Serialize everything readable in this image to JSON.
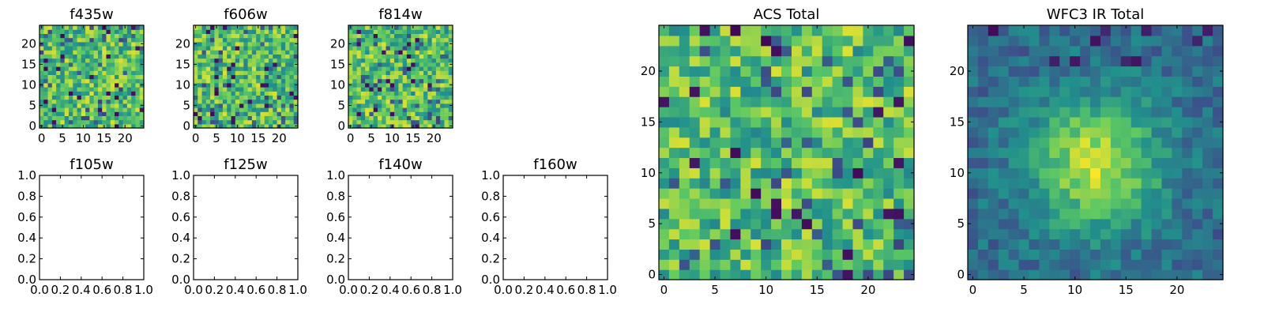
{
  "colormap": [
    "#440154",
    "#3b528b",
    "#21918c",
    "#5ec962",
    "#fde725"
  ],
  "chart_data": [
    {
      "type": "heatmap",
      "title": "f435w",
      "xticks": [
        "0",
        "5",
        "10",
        "15",
        "20"
      ],
      "yticks": [
        "0",
        "5",
        "10",
        "15",
        "20"
      ],
      "grid": false,
      "legend": "none",
      "extent": [
        -0.5,
        24.5,
        -0.5,
        24.5
      ],
      "seed": 11,
      "mode": "noise"
    },
    {
      "type": "heatmap",
      "title": "f606w",
      "xticks": [
        "0",
        "5",
        "10",
        "15",
        "20"
      ],
      "yticks": [
        "0",
        "5",
        "10",
        "15",
        "20"
      ],
      "grid": false,
      "legend": "none",
      "extent": [
        -0.5,
        24.5,
        -0.5,
        24.5
      ],
      "seed": 23,
      "mode": "noise"
    },
    {
      "type": "heatmap",
      "title": "f814w",
      "xticks": [
        "0",
        "5",
        "10",
        "15",
        "20"
      ],
      "yticks": [
        "0",
        "5",
        "10",
        "15",
        "20"
      ],
      "grid": false,
      "legend": "none",
      "extent": [
        -0.5,
        24.5,
        -0.5,
        24.5
      ],
      "seed": 37,
      "mode": "noise"
    },
    {
      "type": "empty",
      "title": "f105w",
      "xticks": [
        "0.0",
        "0.2",
        "0.4",
        "0.6",
        "0.8",
        "1.0"
      ],
      "yticks": [
        "0.0",
        "0.2",
        "0.4",
        "0.6",
        "0.8",
        "1.0"
      ],
      "xlim": [
        0,
        1
      ],
      "ylim": [
        0,
        1
      ]
    },
    {
      "type": "empty",
      "title": "f125w",
      "xticks": [
        "0.0",
        "0.2",
        "0.4",
        "0.6",
        "0.8",
        "1.0"
      ],
      "yticks": [
        "0.0",
        "0.2",
        "0.4",
        "0.6",
        "0.8",
        "1.0"
      ],
      "xlim": [
        0,
        1
      ],
      "ylim": [
        0,
        1
      ]
    },
    {
      "type": "empty",
      "title": "f140w",
      "xticks": [
        "0.0",
        "0.2",
        "0.4",
        "0.6",
        "0.8",
        "1.0"
      ],
      "yticks": [
        "0.0",
        "0.2",
        "0.4",
        "0.6",
        "0.8",
        "1.0"
      ],
      "xlim": [
        0,
        1
      ],
      "ylim": [
        0,
        1
      ]
    },
    {
      "type": "empty",
      "title": "f160w",
      "xticks": [
        "0.0",
        "0.2",
        "0.4",
        "0.6",
        "0.8",
        "1.0"
      ],
      "yticks": [
        "0.0",
        "0.2",
        "0.4",
        "0.6",
        "0.8",
        "1.0"
      ],
      "xlim": [
        0,
        1
      ],
      "ylim": [
        0,
        1
      ]
    },
    {
      "type": "heatmap",
      "title": "ACS Total",
      "xticks": [
        "0",
        "5",
        "10",
        "15",
        "20"
      ],
      "yticks": [
        "0",
        "5",
        "10",
        "15",
        "20"
      ],
      "grid": false,
      "legend": "none",
      "extent": [
        -0.5,
        24.5,
        -0.5,
        24.5
      ],
      "seed": 53,
      "mode": "noise"
    },
    {
      "type": "heatmap",
      "title": "WFC3 IR Total",
      "xticks": [
        "0",
        "5",
        "10",
        "15",
        "20"
      ],
      "yticks": [
        "0",
        "5",
        "10",
        "15",
        "20"
      ],
      "grid": false,
      "legend": "none",
      "extent": [
        -0.5,
        24.5,
        -0.5,
        24.5
      ],
      "seed": 71,
      "mode": "blob",
      "blob_center": [
        12,
        11
      ]
    }
  ]
}
